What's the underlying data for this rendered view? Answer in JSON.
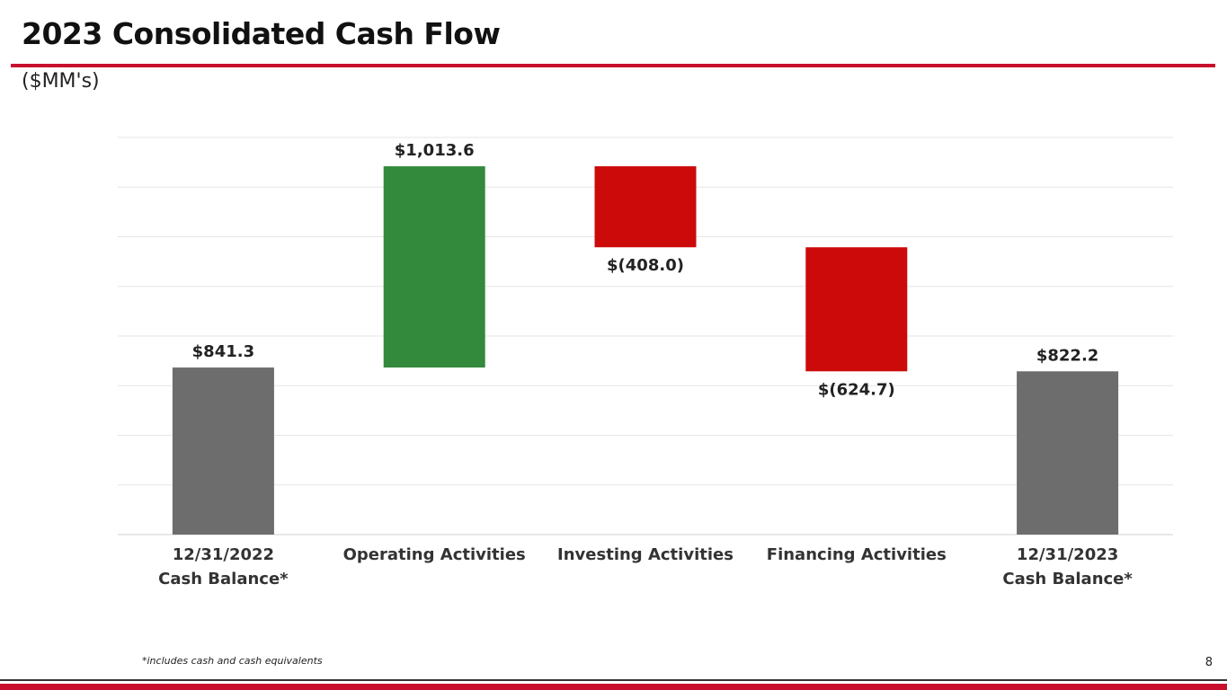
{
  "title": "2023 Consolidated Cash Flow",
  "subtitle": "($MM's)",
  "footnote": "*includes cash and cash equivalents",
  "page_number": "8",
  "chart_data": {
    "type": "waterfall",
    "categories": [
      "12/31/2022\nCash Balance*",
      "Operating Activities",
      "Investing Activities",
      "Financing Activities",
      "12/31/2023\nCash Balance*"
    ],
    "measure": [
      "absolute",
      "relative",
      "relative",
      "relative",
      "absolute"
    ],
    "values": [
      841.3,
      1013.6,
      -408.0,
      -624.7,
      822.2
    ],
    "value_labels": [
      "$841.3",
      "$1,013.6",
      "$(408.0)",
      "$(624.7)",
      "$822.2"
    ],
    "colors": [
      "#6d6d6d",
      "#338a3c",
      "#cc0a0a",
      "#cc0a0a",
      "#6d6d6d"
    ],
    "ylim": [
      0,
      2000
    ],
    "yticks": [
      0,
      250,
      500,
      750,
      1000,
      1250,
      1500,
      1750,
      2000
    ],
    "grid": true,
    "show_ytick_labels": false
  }
}
